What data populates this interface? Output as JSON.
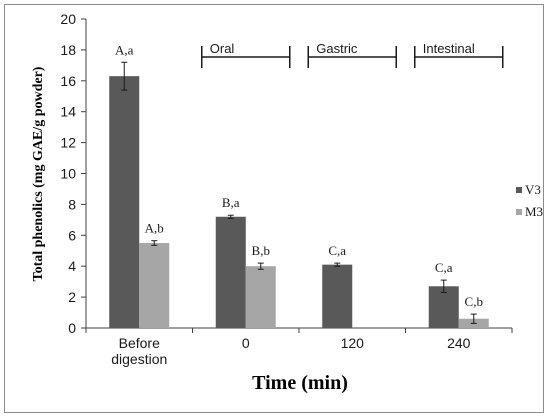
{
  "chart_data": {
    "type": "bar",
    "xlabel": "Time (min)",
    "ylabel": "Total phenolics (mg GAE/g powder)",
    "ylim": [
      0,
      20
    ],
    "yticks": [
      0,
      2,
      4,
      6,
      8,
      10,
      12,
      14,
      16,
      18,
      20
    ],
    "categories": [
      [
        "Before",
        "digestion"
      ],
      [
        "0"
      ],
      [
        "120"
      ],
      [
        "240"
      ]
    ],
    "series": [
      {
        "name": "V3",
        "color": "#595959",
        "values": [
          16.3,
          7.2,
          4.1,
          2.7
        ],
        "errors": [
          0.9,
          0.1,
          0.1,
          0.4
        ],
        "labels": [
          "A,a",
          "B,a",
          "C,a",
          "C,a"
        ]
      },
      {
        "name": "M3",
        "color": "#a6a6a6",
        "values": [
          5.5,
          4.0,
          null,
          0.6
        ],
        "errors": [
          0.15,
          0.2,
          null,
          0.3
        ],
        "labels": [
          "A,b",
          "B,b",
          "",
          "C,b"
        ]
      }
    ],
    "phases": [
      {
        "label": "Oral",
        "category": 1
      },
      {
        "label": "Gastric",
        "category": 2
      },
      {
        "label": "Intestinal",
        "category": 3
      }
    ],
    "legend": "right",
    "grid": false
  }
}
